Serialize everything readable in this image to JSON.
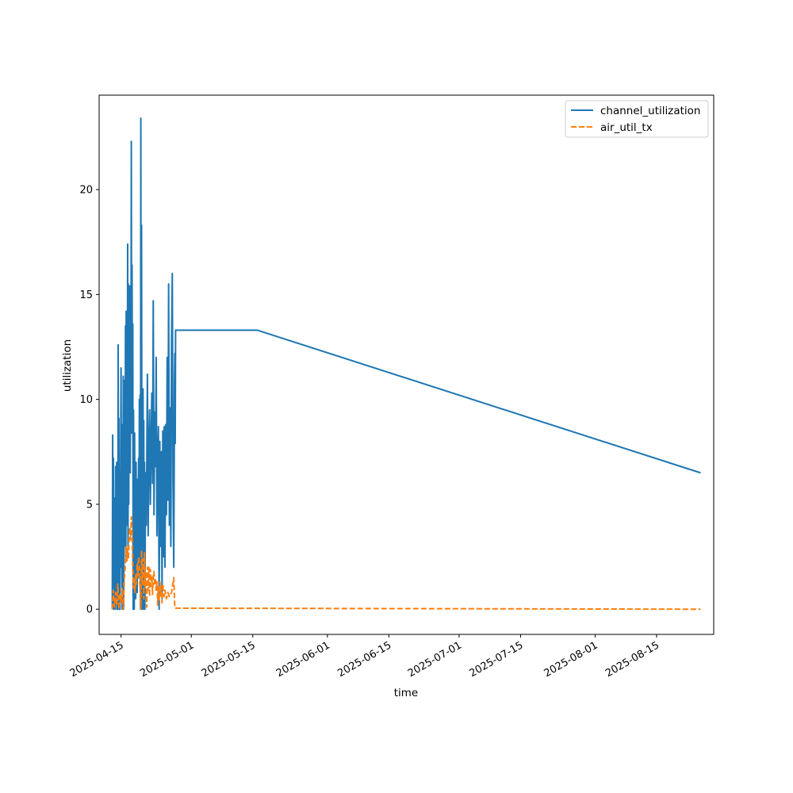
{
  "chart_data": {
    "type": "line",
    "title": "",
    "xlabel": "time",
    "ylabel": "utilization",
    "x_axis": {
      "kind": "date",
      "range": [
        "2025-04-10",
        "2025-08-28"
      ],
      "ticks": [
        "2025-04-15",
        "2025-05-01",
        "2025-05-15",
        "2025-06-01",
        "2025-06-15",
        "2025-07-01",
        "2025-07-15",
        "2025-08-01",
        "2025-08-15"
      ]
    },
    "y_axis": {
      "range": [
        -1.2,
        24.5
      ],
      "ticks": [
        0,
        5,
        10,
        15,
        20
      ]
    },
    "grid": false,
    "legend_position": "top-right",
    "series": [
      {
        "name": "channel_utilization",
        "color": "#1f77b4",
        "style": "solid",
        "points": [
          [
            "2025-04-13 00:00",
            0.0
          ],
          [
            "2025-04-13 02:00",
            8.3
          ],
          [
            "2025-04-13 04:00",
            2.1
          ],
          [
            "2025-04-13 06:00",
            7.2
          ],
          [
            "2025-04-13 08:00",
            0.0
          ],
          [
            "2025-04-13 10:00",
            5.3
          ],
          [
            "2025-04-13 12:00",
            1.0
          ],
          [
            "2025-04-13 14:00",
            5.0
          ],
          [
            "2025-04-13 16:00",
            0.0
          ],
          [
            "2025-04-13 18:00",
            6.8
          ],
          [
            "2025-04-13 20:00",
            0.5
          ],
          [
            "2025-04-14 00:00",
            7.0
          ],
          [
            "2025-04-14 02:00",
            0.0
          ],
          [
            "2025-04-14 04:00",
            4.6
          ],
          [
            "2025-04-14 06:00",
            0.0
          ],
          [
            "2025-04-14 08:00",
            12.6
          ],
          [
            "2025-04-14 10:00",
            3.0
          ],
          [
            "2025-04-14 12:00",
            9.1
          ],
          [
            "2025-04-14 14:00",
            0.0
          ],
          [
            "2025-04-14 16:00",
            4.8
          ],
          [
            "2025-04-14 18:00",
            0.0
          ],
          [
            "2025-04-15 00:00",
            11.5
          ],
          [
            "2025-04-15 02:00",
            2.0
          ],
          [
            "2025-04-15 04:00",
            8.8
          ],
          [
            "2025-04-15 06:00",
            0.0
          ],
          [
            "2025-04-15 08:00",
            5.8
          ],
          [
            "2025-04-15 10:00",
            1.5
          ],
          [
            "2025-04-15 12:00",
            11.1
          ],
          [
            "2025-04-15 14:00",
            0.0
          ],
          [
            "2025-04-15 18:00",
            10.9
          ],
          [
            "2025-04-15 22:00",
            3.0
          ],
          [
            "2025-04-16 00:00",
            13.5
          ],
          [
            "2025-04-16 02:00",
            2.5
          ],
          [
            "2025-04-16 04:00",
            14.2
          ],
          [
            "2025-04-16 06:00",
            4.0
          ],
          [
            "2025-04-16 08:00",
            12.0
          ],
          [
            "2025-04-16 10:00",
            6.0
          ],
          [
            "2025-04-16 12:00",
            17.4
          ],
          [
            "2025-04-16 14:00",
            3.0
          ],
          [
            "2025-04-16 16:00",
            15.5
          ],
          [
            "2025-04-16 18:00",
            5.0
          ],
          [
            "2025-04-16 20:00",
            13.8
          ],
          [
            "2025-04-16 22:00",
            8.0
          ],
          [
            "2025-04-17 00:00",
            15.4
          ],
          [
            "2025-04-17 02:00",
            6.5
          ],
          [
            "2025-04-17 04:00",
            13.1
          ],
          [
            "2025-04-17 06:00",
            9.0
          ],
          [
            "2025-04-17 08:00",
            22.3
          ],
          [
            "2025-04-17 10:00",
            8.4
          ],
          [
            "2025-04-17 12:00",
            16.4
          ],
          [
            "2025-04-17 14:00",
            9.2
          ],
          [
            "2025-04-17 16:00",
            13.6
          ],
          [
            "2025-04-17 18:00",
            0.0
          ],
          [
            "2025-04-17 20:00",
            9.5
          ],
          [
            "2025-04-18 00:00",
            0.0
          ],
          [
            "2025-04-18 02:00",
            8.4
          ],
          [
            "2025-04-18 04:00",
            2.5
          ],
          [
            "2025-04-18 06:00",
            6.6
          ],
          [
            "2025-04-18 08:00",
            0.5
          ],
          [
            "2025-04-18 10:00",
            7.0
          ],
          [
            "2025-04-18 12:00",
            3.0
          ],
          [
            "2025-04-18 14:00",
            6.2
          ],
          [
            "2025-04-18 16:00",
            0.8
          ],
          [
            "2025-04-19 00:00",
            7.2
          ],
          [
            "2025-04-19 02:00",
            1.5
          ],
          [
            "2025-04-19 04:00",
            10.0
          ],
          [
            "2025-04-19 06:00",
            3.0
          ],
          [
            "2025-04-19 08:00",
            10.2
          ],
          [
            "2025-04-19 10:00",
            0.0
          ],
          [
            "2025-04-19 12:00",
            23.4
          ],
          [
            "2025-04-19 14:00",
            4.0
          ],
          [
            "2025-04-19 16:00",
            18.3
          ],
          [
            "2025-04-19 18:00",
            0.0
          ],
          [
            "2025-04-20 00:00",
            10.5
          ],
          [
            "2025-04-20 02:00",
            0.0
          ],
          [
            "2025-04-20 04:00",
            9.0
          ],
          [
            "2025-04-20 06:00",
            2.0
          ],
          [
            "2025-04-20 08:00",
            7.0
          ],
          [
            "2025-04-20 10:00",
            0.0
          ],
          [
            "2025-04-20 14:00",
            6.5
          ],
          [
            "2025-04-20 18:00",
            4.0
          ],
          [
            "2025-04-21 00:00",
            11.2
          ],
          [
            "2025-04-21 04:00",
            3.5
          ],
          [
            "2025-04-21 08:00",
            7.6
          ],
          [
            "2025-04-21 12:00",
            9.5
          ],
          [
            "2025-04-21 16:00",
            5.0
          ],
          [
            "2025-04-22 00:00",
            10.3
          ],
          [
            "2025-04-22 04:00",
            6.0
          ],
          [
            "2025-04-22 08:00",
            14.7
          ],
          [
            "2025-04-22 12:00",
            4.5
          ],
          [
            "2025-04-22 16:00",
            9.4
          ],
          [
            "2025-04-22 20:00",
            6.8
          ],
          [
            "2025-04-23 00:00",
            12.0
          ],
          [
            "2025-04-23 04:00",
            3.5
          ],
          [
            "2025-04-23 08:00",
            7.3
          ],
          [
            "2025-04-23 12:00",
            8.7
          ],
          [
            "2025-04-23 16:00",
            0.0
          ],
          [
            "2025-04-23 20:00",
            8.0
          ],
          [
            "2025-04-24 00:00",
            3.0
          ],
          [
            "2025-04-24 04:00",
            7.5
          ],
          [
            "2025-04-24 08:00",
            0.5
          ],
          [
            "2025-04-24 12:00",
            8.5
          ],
          [
            "2025-04-24 16:00",
            2.5
          ],
          [
            "2025-04-24 20:00",
            8.7
          ],
          [
            "2025-04-25 00:00",
            2.0
          ],
          [
            "2025-04-25 04:00",
            8.8
          ],
          [
            "2025-04-25 08:00",
            4.5
          ],
          [
            "2025-04-25 12:00",
            12.0
          ],
          [
            "2025-04-25 16:00",
            5.2
          ],
          [
            "2025-04-25 20:00",
            15.5
          ],
          [
            "2025-04-26 00:00",
            4.0
          ],
          [
            "2025-04-26 04:00",
            9.6
          ],
          [
            "2025-04-26 08:00",
            3.0
          ],
          [
            "2025-04-26 12:00",
            12.8
          ],
          [
            "2025-04-26 16:00",
            16.0
          ],
          [
            "2025-04-26 20:00",
            6.0
          ],
          [
            "2025-04-27 00:00",
            2.0
          ],
          [
            "2025-04-27 02:00",
            5.8
          ],
          [
            "2025-04-27 04:00",
            10.8
          ],
          [
            "2025-04-27 06:00",
            12.2
          ],
          [
            "2025-04-27 08:00",
            7.9
          ],
          [
            "2025-04-27 10:00",
            13.3
          ],
          [
            "2025-05-16 00:00",
            13.3
          ],
          [
            "2025-08-25 00:00",
            6.5
          ]
        ]
      },
      {
        "name": "air_util_tx",
        "color": "#ff7f0e",
        "style": "dashed",
        "points": [
          [
            "2025-04-13 00:00",
            0.0
          ],
          [
            "2025-04-13 06:00",
            0.9
          ],
          [
            "2025-04-13 12:00",
            0.1
          ],
          [
            "2025-04-13 18:00",
            0.8
          ],
          [
            "2025-04-14 00:00",
            0.2
          ],
          [
            "2025-04-14 06:00",
            1.2
          ],
          [
            "2025-04-14 12:00",
            0.0
          ],
          [
            "2025-04-14 18:00",
            0.7
          ],
          [
            "2025-04-15 00:00",
            0.3
          ],
          [
            "2025-04-15 06:00",
            1.0
          ],
          [
            "2025-04-15 12:00",
            0.0
          ],
          [
            "2025-04-15 18:00",
            1.5
          ],
          [
            "2025-04-16 00:00",
            2.2
          ],
          [
            "2025-04-16 04:00",
            3.0
          ],
          [
            "2025-04-16 08:00",
            2.3
          ],
          [
            "2025-04-16 12:00",
            2.9
          ],
          [
            "2025-04-16 16:00",
            2.4
          ],
          [
            "2025-04-16 20:00",
            3.5
          ],
          [
            "2025-04-17 00:00",
            3.9
          ],
          [
            "2025-04-17 04:00",
            3.3
          ],
          [
            "2025-04-17 08:00",
            4.4
          ],
          [
            "2025-04-17 12:00",
            3.8
          ],
          [
            "2025-04-17 16:00",
            2.0
          ],
          [
            "2025-04-17 20:00",
            1.0
          ],
          [
            "2025-04-18 00:00",
            1.5
          ],
          [
            "2025-04-18 04:00",
            0.8
          ],
          [
            "2025-04-18 08:00",
            1.7
          ],
          [
            "2025-04-18 12:00",
            1.2
          ],
          [
            "2025-04-18 16:00",
            2.2
          ],
          [
            "2025-04-18 20:00",
            1.6
          ],
          [
            "2025-04-19 00:00",
            2.5
          ],
          [
            "2025-04-19 04:00",
            2.0
          ],
          [
            "2025-04-19 08:00",
            1.0
          ],
          [
            "2025-04-19 12:00",
            0.0
          ],
          [
            "2025-04-19 16:00",
            2.8
          ],
          [
            "2025-04-19 20:00",
            1.2
          ],
          [
            "2025-04-20 00:00",
            2.4
          ],
          [
            "2025-04-20 04:00",
            0.5
          ],
          [
            "2025-04-20 08:00",
            2.7
          ],
          [
            "2025-04-20 12:00",
            1.0
          ],
          [
            "2025-04-20 16:00",
            1.8
          ],
          [
            "2025-04-20 20:00",
            0.1
          ],
          [
            "2025-04-21 00:00",
            2.0
          ],
          [
            "2025-04-21 04:00",
            0.9
          ],
          [
            "2025-04-21 08:00",
            2.0
          ],
          [
            "2025-04-21 12:00",
            0.6
          ],
          [
            "2025-04-21 16:00",
            1.9
          ],
          [
            "2025-04-21 20:00",
            1.1
          ],
          [
            "2025-04-22 00:00",
            1.6
          ],
          [
            "2025-04-22 04:00",
            0.7
          ],
          [
            "2025-04-22 08:00",
            1.5
          ],
          [
            "2025-04-22 12:00",
            1.8
          ],
          [
            "2025-04-22 16:00",
            1.2
          ],
          [
            "2025-04-22 20:00",
            1.4
          ],
          [
            "2025-04-23 00:00",
            0.9
          ],
          [
            "2025-04-23 04:00",
            1.3
          ],
          [
            "2025-04-23 08:00",
            0.2
          ],
          [
            "2025-04-23 12:00",
            1.1
          ],
          [
            "2025-04-23 16:00",
            0.4
          ],
          [
            "2025-04-23 20:00",
            1.3
          ],
          [
            "2025-04-24 00:00",
            0.6
          ],
          [
            "2025-04-24 04:00",
            1.1
          ],
          [
            "2025-04-24 08:00",
            0.3
          ],
          [
            "2025-04-24 12:00",
            1.2
          ],
          [
            "2025-04-24 16:00",
            0.8
          ],
          [
            "2025-04-24 20:00",
            0.6
          ],
          [
            "2025-04-25 00:00",
            0.9
          ],
          [
            "2025-04-25 08:00",
            0.5
          ],
          [
            "2025-04-25 16:00",
            0.8
          ],
          [
            "2025-04-26 00:00",
            0.6
          ],
          [
            "2025-04-26 12:00",
            0.8
          ],
          [
            "2025-04-27 00:00",
            1.5
          ],
          [
            "2025-04-27 06:00",
            0.05
          ],
          [
            "2025-08-25 00:00",
            0.0
          ]
        ]
      }
    ]
  }
}
